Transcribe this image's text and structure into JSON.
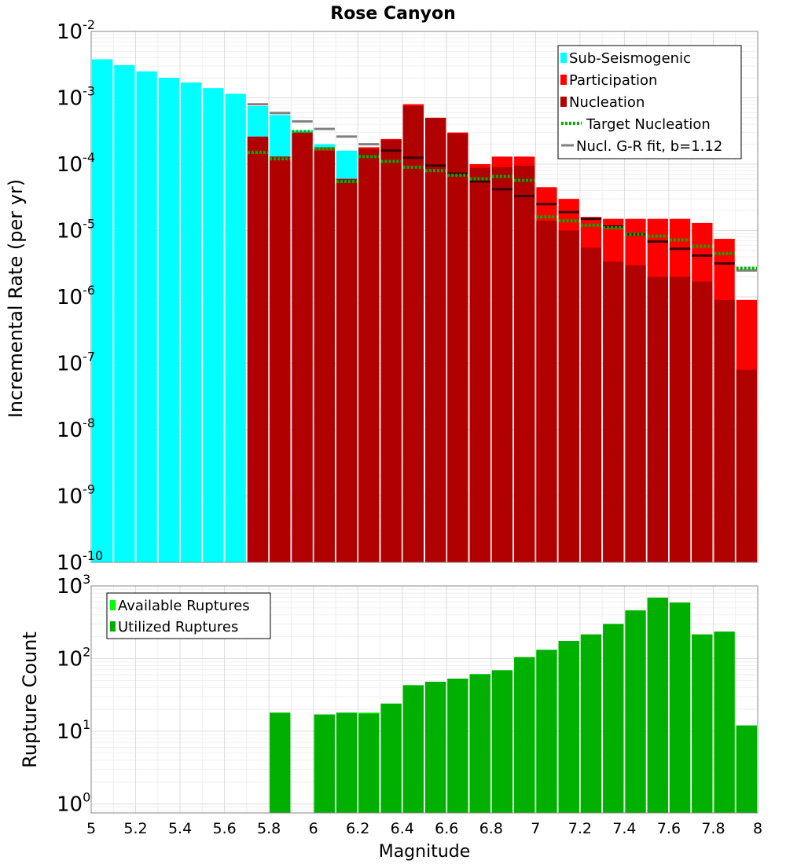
{
  "chart_data": [
    {
      "type": "bar",
      "title": "Rose Canyon",
      "xlabel": "",
      "ylabel": "Incremental Rate (per yr)",
      "yscale": "log",
      "ylim": [
        1e-10,
        0.01
      ],
      "xlim": [
        5,
        8
      ],
      "y_tick_exponents": [
        -10,
        -9,
        -8,
        -7,
        -6,
        -5,
        -4,
        -3,
        -2
      ],
      "bin_width": 0.1,
      "legend_position": "top-right",
      "legend": [
        {
          "label": "Sub-Seismogenic",
          "color": "#00ffff",
          "style": "bar"
        },
        {
          "label": "Participation",
          "color": "#ff0000",
          "style": "bar"
        },
        {
          "label": "Nucleation",
          "color": "#b00000",
          "style": "bar"
        },
        {
          "label": "Target Nucleation",
          "color": "#00b000",
          "style": "dotted"
        },
        {
          "label": "Nucl. G-R fit, b=1.12",
          "color": "#808080",
          "style": "line"
        }
      ],
      "sub_seismogenic": {
        "x": [
          5.05,
          5.15,
          5.25,
          5.35,
          5.45,
          5.55,
          5.65,
          5.75,
          5.85,
          5.95,
          6.05,
          6.15
        ],
        "values": [
          0.0038,
          0.0031,
          0.0025,
          0.002,
          0.0017,
          0.0014,
          0.00115,
          0.00075,
          0.00055,
          0.00032,
          0.0002,
          0.00016
        ]
      },
      "participation": {
        "x": [
          5.75,
          5.85,
          5.95,
          6.05,
          6.15,
          6.25,
          6.35,
          6.45,
          6.55,
          6.65,
          6.75,
          6.85,
          6.95,
          7.05,
          7.15,
          7.25,
          7.35,
          7.45,
          7.55,
          7.65,
          7.75,
          7.85,
          7.95
        ],
        "values": [
          0.00026,
          0.00013,
          0.0003,
          0.00018,
          6e-05,
          0.00018,
          0.00024,
          0.0008,
          0.0005,
          0.0003,
          0.0001,
          0.00013,
          0.00013,
          4.5e-05,
          3e-05,
          1.6e-05,
          1.5e-05,
          1.5e-05,
          1.5e-05,
          1.5e-05,
          1.3e-05,
          7.5e-06,
          9e-07
        ]
      },
      "nucleation": {
        "x": [
          5.75,
          5.85,
          5.95,
          6.05,
          6.15,
          6.25,
          6.35,
          6.45,
          6.55,
          6.65,
          6.75,
          6.85,
          6.95,
          7.05,
          7.15,
          7.25,
          7.35,
          7.45,
          7.55,
          7.65,
          7.75,
          7.85,
          7.95
        ],
        "values": [
          0.00026,
          0.00013,
          0.0003,
          0.00016,
          6e-05,
          0.00017,
          0.00023,
          0.00075,
          0.0005,
          0.00029,
          8.8e-05,
          9e-05,
          9.5e-05,
          1.4e-05,
          1e-05,
          5.5e-06,
          3.4e-06,
          3e-06,
          2e-06,
          2e-06,
          1.7e-06,
          9e-07,
          8e-08
        ]
      },
      "target_nucleation": {
        "x": [
          5.75,
          5.85,
          5.95,
          6.05,
          6.15,
          6.25,
          6.35,
          6.45,
          6.55,
          6.65,
          6.75,
          6.85,
          6.95,
          7.05,
          7.15,
          7.25,
          7.35,
          7.45,
          7.55,
          7.65,
          7.75,
          7.85,
          7.95
        ],
        "values": [
          0.00015,
          0.00012,
          0.00031,
          0.00017,
          5.5e-05,
          0.00013,
          0.00011,
          9e-05,
          8e-05,
          6.8e-05,
          6e-05,
          6.5e-05,
          5.7e-05,
          1.6e-05,
          1.4e-05,
          1.2e-05,
          1.1e-05,
          8.8e-06,
          8.2e-06,
          7.2e-06,
          5.8e-06,
          4.5e-06,
          2.7e-06
        ]
      },
      "nucl_gr_fit": {
        "x": [
          5.75,
          5.85,
          5.95,
          6.05,
          6.15,
          6.25,
          6.35,
          6.45,
          6.55,
          6.65,
          6.75,
          6.85,
          6.95,
          7.05,
          7.15,
          7.25,
          7.35,
          7.45,
          7.55,
          7.65,
          7.75,
          7.85,
          7.95
        ],
        "values": [
          0.0008,
          0.00059,
          0.00044,
          0.00034,
          0.00026,
          0.0002,
          0.00016,
          0.000125,
          9.5e-05,
          7.2e-05,
          5.5e-05,
          4.2e-05,
          3.3e-05,
          2.5e-05,
          1.9e-05,
          1.5e-05,
          1.15e-05,
          8.8e-06,
          6.8e-06,
          5.3e-06,
          4.2e-06,
          3.2e-06,
          2.5e-06
        ]
      }
    },
    {
      "type": "bar",
      "title": "",
      "xlabel": "Magnitude",
      "ylabel": "Rupture Count",
      "yscale": "log",
      "ylim": [
        0.75,
        1000
      ],
      "xlim": [
        5,
        8
      ],
      "y_tick_exponents": [
        0,
        1,
        2,
        3
      ],
      "x_ticks": [
        "5",
        "5.2",
        "5.4",
        "5.6",
        "5.8",
        "6",
        "6.2",
        "6.4",
        "6.6",
        "6.8",
        "7",
        "7.2",
        "7.4",
        "7.6",
        "7.8",
        "8"
      ],
      "bin_width": 0.1,
      "legend_position": "top-left",
      "legend": [
        {
          "label": "Available Ruptures",
          "color": "#00ff00",
          "style": "bar"
        },
        {
          "label": "Utilized Ruptures",
          "color": "#00b000",
          "style": "bar"
        }
      ],
      "available": {
        "x": [
          5.85,
          6.05,
          6.15,
          6.25,
          6.35,
          6.45,
          6.55,
          6.65,
          6.75,
          6.85,
          6.95,
          7.05,
          7.15,
          7.25,
          7.35,
          7.45,
          7.55,
          7.65,
          7.75,
          7.85,
          7.95
        ],
        "values": [
          18,
          17,
          18,
          18,
          24,
          43,
          48,
          53,
          61,
          69,
          105,
          132,
          175,
          215,
          300,
          460,
          690,
          590,
          215,
          235,
          12
        ]
      },
      "utilized": {
        "x": [
          5.85,
          6.05,
          6.15,
          6.25,
          6.35,
          6.45,
          6.55,
          6.65,
          6.75,
          6.85,
          6.95,
          7.05,
          7.15,
          7.25,
          7.35,
          7.45,
          7.55,
          7.65,
          7.75,
          7.85,
          7.95
        ],
        "values": [
          18,
          17,
          18,
          17.5,
          24,
          43,
          48,
          53,
          61,
          69,
          105,
          132,
          175,
          215,
          300,
          460,
          690,
          590,
          215,
          235,
          12
        ]
      }
    }
  ]
}
